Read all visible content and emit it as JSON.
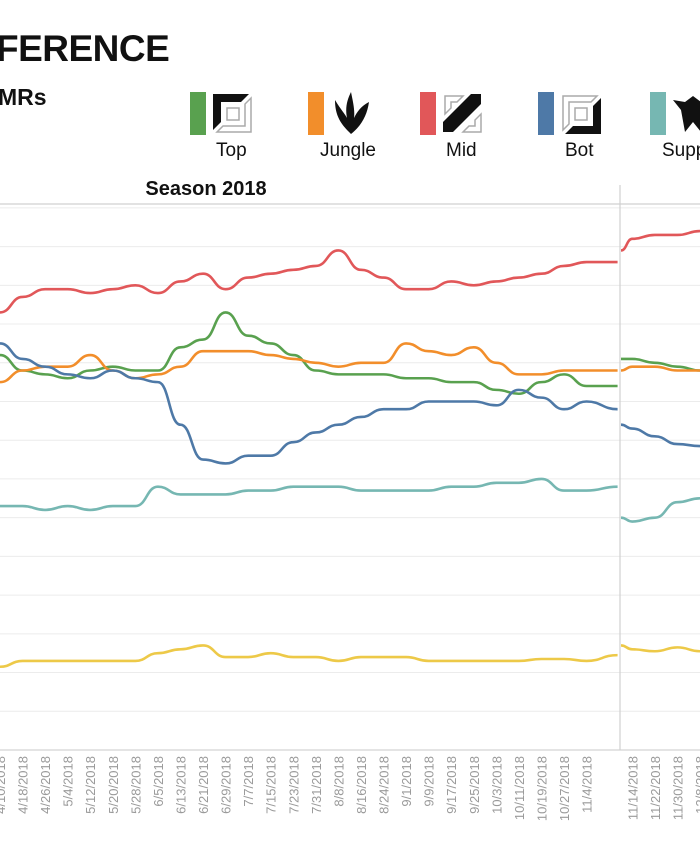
{
  "header": {
    "title": "FERENCE",
    "subtitle": "MRs"
  },
  "legend": [
    {
      "label": "Top",
      "color": "#59a14f",
      "icon": "top-lane-icon"
    },
    {
      "label": "Jungle",
      "color": "#f28e2b",
      "icon": "jungle-claw-icon"
    },
    {
      "label": "Mid",
      "color": "#e15759",
      "icon": "mid-lane-icon"
    },
    {
      "label": "Bot",
      "color": "#4e79a7",
      "icon": "bot-lane-icon"
    },
    {
      "label": "Support",
      "color": "#76b7b2",
      "icon": "support-icon"
    }
  ],
  "chart_data": {
    "type": "line",
    "title": "Season 2018",
    "xlabel": "",
    "ylabel": "",
    "ylim": [
      0,
      14.1
    ],
    "grid": true,
    "y_grid_step": 1,
    "panels": [
      {
        "title": "Season 2018",
        "x": [
          "4/10/2018",
          "4/18/2018",
          "4/26/2018",
          "5/4/2018",
          "5/12/2018",
          "5/20/2018",
          "5/28/2018",
          "6/5/2018",
          "6/13/2018",
          "6/21/2018",
          "6/29/2018",
          "7/7/2018",
          "7/15/2018",
          "7/23/2018",
          "7/31/2018",
          "8/8/2018",
          "8/16/2018",
          "8/24/2018",
          "9/1/2018",
          "9/9/2018",
          "9/17/2018",
          "9/25/2018",
          "10/3/2018",
          "10/11/2018",
          "10/19/2018",
          "10/27/2018",
          "11/4/2018",
          "11/15/2018"
        ],
        "tick_labels": [
          "4/10/2018",
          "4/18/2018",
          "4/26/2018",
          "5/4/2018",
          "5/12/2018",
          "5/20/2018",
          "5/28/2018",
          "6/5/2018",
          "6/13/2018",
          "6/21/2018",
          "6/29/2018",
          "7/7/2018",
          "7/15/2018",
          "7/23/2018",
          "7/31/2018",
          "8/8/2018",
          "8/16/2018",
          "8/24/2018",
          "9/1/2018",
          "9/9/2018",
          "9/17/2018",
          "9/25/2018",
          "10/3/2018",
          "10/11/2018",
          "10/19/2018",
          "10/27/2018",
          "11/4/2018"
        ],
        "series": [
          {
            "name": "Mid",
            "color": "#e15759",
            "values": [
              11.3,
              11.7,
              11.9,
              11.9,
              11.8,
              11.9,
              12.0,
              11.8,
              12.1,
              12.3,
              11.9,
              12.2,
              12.3,
              12.4,
              12.5,
              12.9,
              12.4,
              12.2,
              11.9,
              11.9,
              12.1,
              12.0,
              12.1,
              12.2,
              12.3,
              12.5,
              12.6,
              12.6
            ]
          },
          {
            "name": "Top",
            "color": "#59a14f",
            "values": [
              10.2,
              9.8,
              9.7,
              9.6,
              9.8,
              9.9,
              9.8,
              9.8,
              10.4,
              10.6,
              11.3,
              10.7,
              10.5,
              10.2,
              9.8,
              9.7,
              9.7,
              9.7,
              9.6,
              9.6,
              9.5,
              9.5,
              9.3,
              9.2,
              9.5,
              9.7,
              9.4,
              9.4
            ]
          },
          {
            "name": "Jungle",
            "color": "#f28e2b",
            "values": [
              9.5,
              9.8,
              9.9,
              9.9,
              10.2,
              9.8,
              9.6,
              9.7,
              9.9,
              10.3,
              10.3,
              10.3,
              10.2,
              10.1,
              10.0,
              9.9,
              10.0,
              10.0,
              10.5,
              10.3,
              10.2,
              10.4,
              10.0,
              9.7,
              9.7,
              9.8,
              9.8,
              9.8
            ]
          },
          {
            "name": "Bot",
            "color": "#4e79a7",
            "values": [
              10.5,
              10.1,
              9.9,
              9.7,
              9.6,
              9.8,
              9.6,
              9.5,
              8.4,
              7.5,
              7.4,
              7.6,
              7.6,
              7.95,
              8.2,
              8.4,
              8.6,
              8.8,
              8.8,
              9.0,
              9.0,
              9.0,
              8.9,
              9.3,
              9.1,
              8.8,
              9.0,
              8.8
            ]
          },
          {
            "name": "Support",
            "color": "#76b7b2",
            "values": [
              6.3,
              6.3,
              6.2,
              6.3,
              6.2,
              6.3,
              6.3,
              6.8,
              6.6,
              6.6,
              6.6,
              6.7,
              6.7,
              6.8,
              6.8,
              6.8,
              6.7,
              6.7,
              6.7,
              6.7,
              6.8,
              6.8,
              6.9,
              6.9,
              7.0,
              6.7,
              6.7,
              6.8
            ]
          },
          {
            "name": "",
            "color": "#edc948",
            "values": [
              2.15,
              2.3,
              2.3,
              2.3,
              2.3,
              2.3,
              2.3,
              2.5,
              2.6,
              2.7,
              2.4,
              2.4,
              2.5,
              2.4,
              2.4,
              2.3,
              2.4,
              2.4,
              2.4,
              2.3,
              2.3,
              2.3,
              2.3,
              2.3,
              2.35,
              2.35,
              2.3,
              2.45
            ]
          }
        ]
      },
      {
        "title": "",
        "x": [
          "11/10/2018",
          "11/14/2018",
          "11/22/2018",
          "11/30/2018",
          "12/8/2018",
          "12/10/2018"
        ],
        "tick_labels": [
          "11/14/2018",
          "11/22/2018",
          "11/30/2018",
          "12/8/2018"
        ],
        "series": [
          {
            "name": "Mid",
            "color": "#e15759",
            "values": [
              12.9,
              13.2,
              13.3,
              13.3,
              13.4,
              13.5
            ]
          },
          {
            "name": "Top",
            "color": "#59a14f",
            "values": [
              10.1,
              10.1,
              10.0,
              9.9,
              9.8,
              9.7
            ]
          },
          {
            "name": "Jungle",
            "color": "#f28e2b",
            "values": [
              9.8,
              9.9,
              9.9,
              9.8,
              9.8,
              9.8
            ]
          },
          {
            "name": "Bot",
            "color": "#4e79a7",
            "values": [
              8.4,
              8.3,
              8.1,
              7.9,
              7.85,
              7.85
            ]
          },
          {
            "name": "Support",
            "color": "#76b7b2",
            "values": [
              6.0,
              5.9,
              6.0,
              6.4,
              6.5,
              6.55
            ]
          },
          {
            "name": "",
            "color": "#edc948",
            "values": [
              2.7,
              2.6,
              2.55,
              2.65,
              2.55,
              2.55
            ]
          }
        ]
      }
    ]
  }
}
